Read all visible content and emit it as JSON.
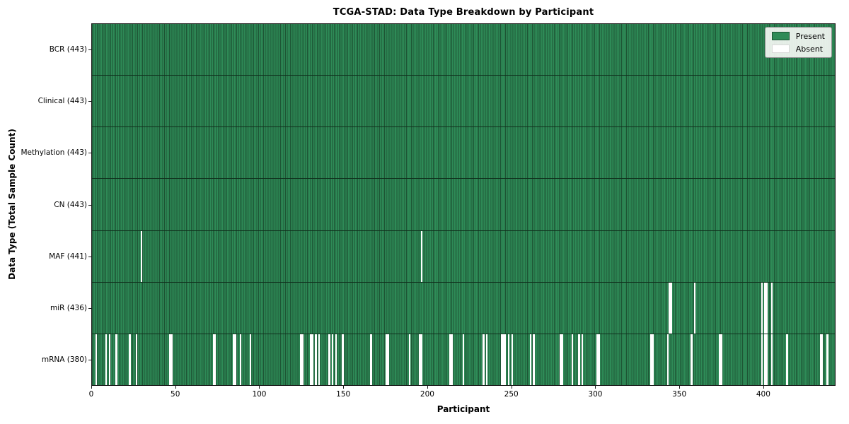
{
  "chart_data": {
    "type": "heatmap",
    "title": "TCGA-STAD: Data Type Breakdown by Participant",
    "xlabel": "Participant",
    "ylabel": "Data Type (Total Sample Count)",
    "x_range": [
      0,
      443
    ],
    "n_participants": 443,
    "x_ticks": [
      0,
      50,
      100,
      150,
      200,
      250,
      300,
      350,
      400
    ],
    "grid": false,
    "legend_position": "upper right",
    "colors": {
      "present": "#2e8b57",
      "present_edge": "#1d5434",
      "absent": "#ffffff",
      "row_divider": "#10301d",
      "spine": "#1a1a1a"
    },
    "legend": [
      {
        "label": "Present",
        "color": "#2e8b57"
      },
      {
        "label": "Absent",
        "color": "#ffffff"
      }
    ],
    "rows": [
      {
        "name": "BCR",
        "label": "BCR (443)",
        "present_count": 443,
        "absent": []
      },
      {
        "name": "Clinical",
        "label": "Clinical (443)",
        "present_count": 443,
        "absent": []
      },
      {
        "name": "Methylation",
        "label": "Methylation (443)",
        "present_count": 443,
        "absent": []
      },
      {
        "name": "CN",
        "label": "CN (443)",
        "present_count": 443,
        "absent": []
      },
      {
        "name": "MAF",
        "label": "MAF (441)",
        "present_count": 441,
        "absent": [
          29,
          196
        ]
      },
      {
        "name": "miR",
        "label": "miR (436)",
        "present_count": 436,
        "absent": [
          344,
          345,
          359,
          399,
          401,
          402,
          405
        ]
      },
      {
        "name": "mRNA",
        "label": "mRNA (380)",
        "present_count": 380,
        "absent": [
          2,
          8,
          10,
          14,
          22,
          26,
          46,
          47,
          72,
          73,
          84,
          85,
          88,
          94,
          124,
          125,
          130,
          131,
          133,
          135,
          141,
          143,
          145,
          149,
          166,
          175,
          176,
          189,
          195,
          196,
          213,
          214,
          221,
          233,
          235,
          244,
          245,
          246,
          248,
          250,
          261,
          263,
          279,
          280,
          286,
          290,
          292,
          301,
          302,
          333,
          334,
          343,
          357,
          374,
          375,
          399,
          401,
          402,
          405,
          414,
          434,
          435,
          438
        ]
      }
    ]
  }
}
